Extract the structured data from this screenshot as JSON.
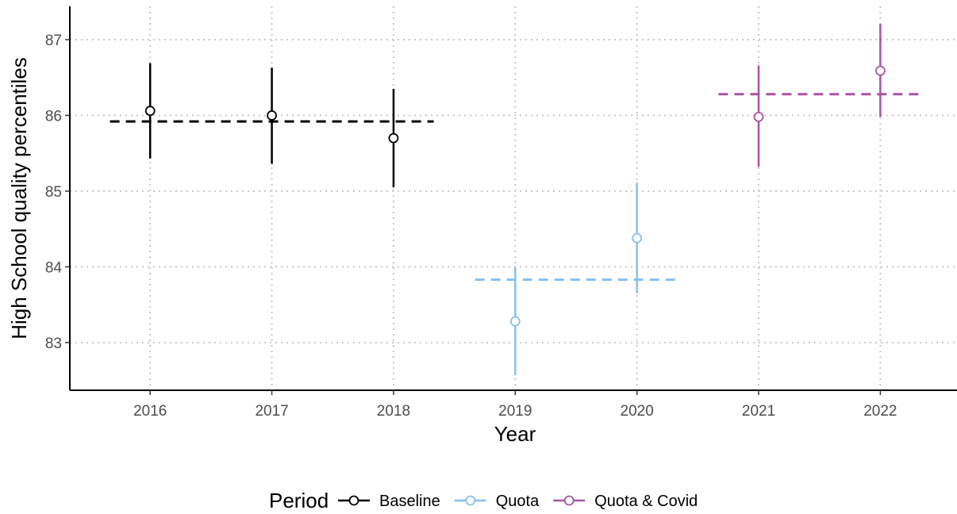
{
  "chart_data": {
    "type": "scatter",
    "xlabel": "Year",
    "ylabel": "High School quality percentiles",
    "x_categories": [
      2016,
      2017,
      2018,
      2019,
      2020,
      2021,
      2022
    ],
    "x_tick_labels": [
      "2016",
      "2017",
      "2018",
      "2019",
      "2020",
      "2021",
      "2022"
    ],
    "xlim": [
      2015.34,
      2022.63
    ],
    "ylim": [
      82.37,
      87.44
    ],
    "y_ticks": [
      83,
      84,
      85,
      86,
      87
    ],
    "y_tick_labels": [
      "83",
      "84",
      "85",
      "86",
      "87"
    ],
    "grid": "dotted",
    "legend": {
      "title": "Period",
      "position": "bottom"
    },
    "series": [
      {
        "name": "Baseline",
        "color": "#000000",
        "points": [
          {
            "x": 2016,
            "y": 86.06,
            "low": 85.43,
            "high": 86.69
          },
          {
            "x": 2017,
            "y": 86.0,
            "low": 85.36,
            "high": 86.63
          },
          {
            "x": 2018,
            "y": 85.7,
            "low": 85.05,
            "high": 86.35
          }
        ],
        "mean_line": {
          "y": 85.92,
          "x_start": 2015.67,
          "x_end": 2018.33
        }
      },
      {
        "name": "Quota",
        "color": "#85C0F0",
        "points": [
          {
            "x": 2019,
            "y": 83.28,
            "low": 82.57,
            "high": 84.0
          },
          {
            "x": 2020,
            "y": 84.38,
            "low": 83.65,
            "high": 85.11
          }
        ],
        "mean_line": {
          "y": 83.83,
          "x_start": 2018.67,
          "x_end": 2020.33
        }
      },
      {
        "name": "Quota & Covid",
        "color": "#A854A3",
        "points": [
          {
            "x": 2021,
            "y": 85.98,
            "low": 85.32,
            "high": 86.66
          },
          {
            "x": 2022,
            "y": 86.59,
            "low": 85.98,
            "high": 87.21
          }
        ],
        "mean_line": {
          "y": 86.28,
          "x_start": 2020.67,
          "x_end": 2022.33
        }
      }
    ]
  }
}
